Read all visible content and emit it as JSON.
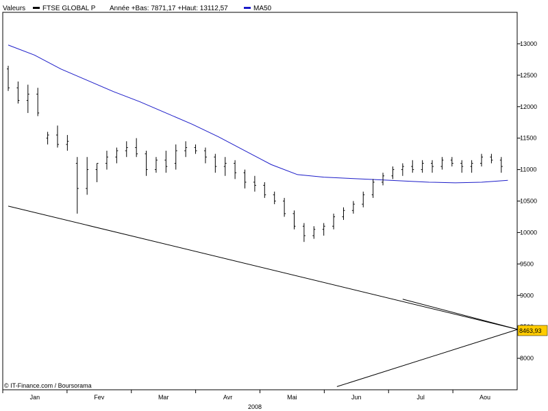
{
  "chart_data": {
    "type": "ohlc",
    "legend": {
      "first_label": "Valeurs",
      "series_name": "FTSE GLOBAL P",
      "stats": "Année +Bas: 7871,17 +Haut: 13112,57",
      "ma_name": "MA50"
    },
    "colors": {
      "bars": "#000000",
      "ma": "#1a1ac8",
      "trendline": "#000000",
      "candle_up": "#22aa22",
      "candle_down": "#cc2222",
      "last_value_box": "#ffcc00"
    },
    "ylim": [
      7500,
      13500
    ],
    "y_ticks": [
      8000,
      8500,
      9000,
      9500,
      10000,
      10500,
      11000,
      11500,
      12000,
      12500,
      13000
    ],
    "y_tick_labels": [
      "8000",
      "8500",
      "9000",
      "9500",
      "10000",
      "10500",
      "11000",
      "11500",
      "12000",
      "12500",
      "13000"
    ],
    "x_ticks": [
      "Jan",
      "Fev",
      "Mar",
      "Avr",
      "Mai",
      "Jun",
      "Jul",
      "Aou"
    ],
    "x_year": "2008",
    "last_value": "8463,93",
    "credit": "© IT-Finance.com / Boursorama",
    "x_count": 155,
    "ohlc": [
      [
        0,
        12600,
        12650,
        12250,
        12300
      ],
      [
        3,
        12300,
        12400,
        12050,
        12100
      ],
      [
        6,
        12100,
        12350,
        11900,
        12200
      ],
      [
        9,
        12200,
        12300,
        11850,
        11900
      ],
      [
        12,
        11500,
        11600,
        11400,
        11550
      ],
      [
        15,
        11550,
        11700,
        11350,
        11400
      ],
      [
        18,
        11400,
        11550,
        11300,
        11450
      ],
      [
        21,
        11100,
        11200,
        10300,
        10700
      ],
      [
        24,
        10700,
        11200,
        10600,
        11000
      ],
      [
        27,
        11000,
        11100,
        10800,
        11100
      ],
      [
        30,
        11100,
        11300,
        11000,
        11200
      ],
      [
        33,
        11200,
        11350,
        11100,
        11300
      ],
      [
        36,
        11300,
        11450,
        11200,
        11350
      ],
      [
        39,
        11350,
        11500,
        11200,
        11250
      ],
      [
        42,
        11250,
        11300,
        10900,
        11000
      ],
      [
        45,
        11000,
        11200,
        10950,
        11150
      ],
      [
        48,
        11150,
        11300,
        10950,
        11050
      ],
      [
        51,
        11100,
        11400,
        11000,
        11300
      ],
      [
        54,
        11300,
        11450,
        11200,
        11350
      ],
      [
        57,
        11350,
        11400,
        11250,
        11300
      ],
      [
        60,
        11300,
        11350,
        11100,
        11200
      ],
      [
        63,
        11200,
        11250,
        10950,
        11050
      ],
      [
        66,
        11050,
        11200,
        10900,
        11100
      ],
      [
        69,
        11100,
        11150,
        10850,
        10950
      ],
      [
        72,
        10950,
        11000,
        10700,
        10800
      ],
      [
        75,
        10800,
        10900,
        10650,
        10750
      ],
      [
        78,
        10750,
        10800,
        10550,
        10600
      ],
      [
        81,
        10600,
        10650,
        10450,
        10500
      ],
      [
        84,
        10500,
        10550,
        10250,
        10300
      ],
      [
        87,
        10300,
        10350,
        10050,
        10100
      ],
      [
        90,
        10100,
        10150,
        9850,
        9950
      ],
      [
        93,
        9950,
        10100,
        9900,
        10050
      ],
      [
        96,
        10050,
        10150,
        9950,
        10100
      ],
      [
        99,
        10100,
        10300,
        10050,
        10250
      ],
      [
        102,
        10250,
        10400,
        10200,
        10350
      ],
      [
        105,
        10350,
        10500,
        10300,
        10450
      ],
      [
        108,
        10450,
        10650,
        10400,
        10600
      ],
      [
        111,
        10600,
        10850,
        10550,
        10800
      ],
      [
        114,
        10800,
        10950,
        10750,
        10900
      ],
      [
        117,
        10900,
        11050,
        10850,
        11000
      ],
      [
        120,
        11000,
        11100,
        10900,
        11050
      ],
      [
        123,
        11050,
        11150,
        10950,
        11000
      ],
      [
        126,
        11000,
        11150,
        10950,
        11100
      ],
      [
        129,
        11100,
        11150,
        10950,
        11050
      ],
      [
        132,
        11050,
        11200,
        11000,
        11150
      ],
      [
        135,
        11150,
        11200,
        11050,
        11100
      ],
      [
        138,
        11100,
        11150,
        10950,
        11050
      ],
      [
        141,
        11050,
        11150,
        10950,
        11100
      ],
      [
        144,
        11100,
        11250,
        11050,
        11200
      ],
      [
        147,
        11200,
        11250,
        11100,
        11150
      ],
      [
        150,
        11150,
        11200,
        10950,
        11050
      ]
    ],
    "ma50": [
      [
        0,
        12980
      ],
      [
        8,
        12820
      ],
      [
        16,
        12600
      ],
      [
        24,
        12420
      ],
      [
        32,
        12240
      ],
      [
        40,
        12080
      ],
      [
        48,
        11900
      ],
      [
        56,
        11720
      ],
      [
        64,
        11520
      ],
      [
        72,
        11300
      ],
      [
        80,
        11080
      ],
      [
        88,
        10920
      ],
      [
        96,
        10880
      ],
      [
        104,
        10860
      ],
      [
        112,
        10840
      ],
      [
        120,
        10820
      ],
      [
        128,
        10800
      ],
      [
        136,
        10790
      ],
      [
        144,
        10800
      ],
      [
        152,
        10830
      ]
    ],
    "trendlines": [
      {
        "from": [
          0,
          10420
        ],
        "to": [
          155,
          8460
        ]
      },
      {
        "from": [
          100,
          7550
        ],
        "to": [
          155,
          8460
        ]
      },
      {
        "from": [
          120,
          8940
        ],
        "to": [
          155,
          8460
        ]
      }
    ]
  }
}
